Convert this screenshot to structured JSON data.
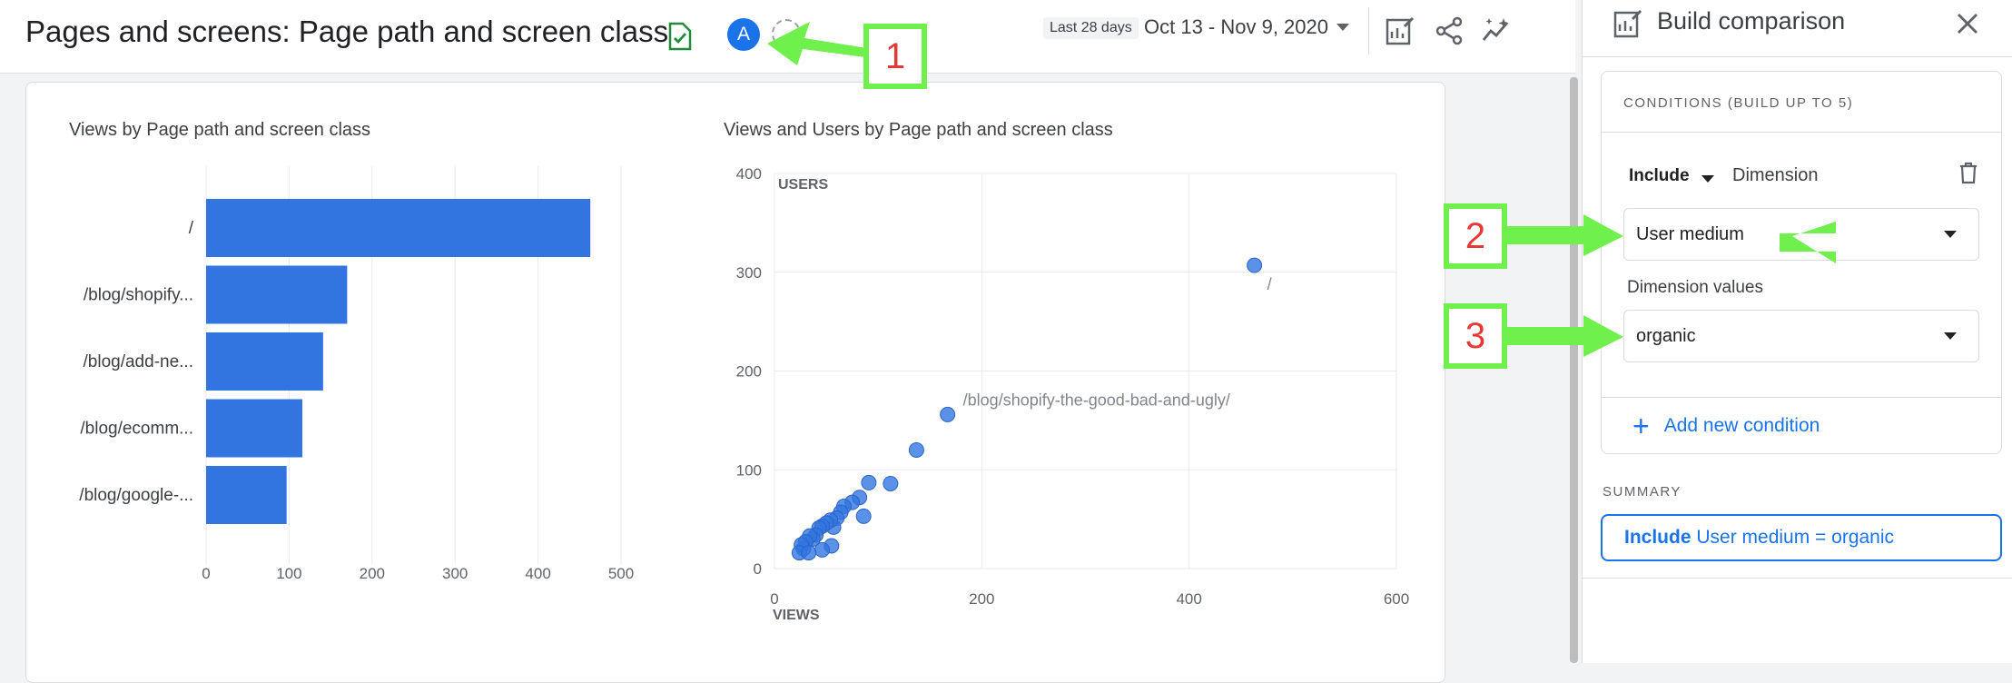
{
  "header": {
    "title": "Pages and screens: Page path and screen class",
    "segment_label": "A",
    "date_chip": "Last 28 days",
    "date_range": "Oct 13 - Nov 9, 2020"
  },
  "bar_chart": {
    "title": "Views by Page path and screen class"
  },
  "scatter_chart": {
    "title": "Views and Users by Page path and screen class"
  },
  "chart_data": [
    {
      "type": "bar",
      "orientation": "horizontal",
      "title": "Views by Page path and screen class",
      "categories": [
        "/",
        "/blog/shopify...",
        "/blog/add-ne...",
        "/blog/ecomm...",
        "/blog/google-..."
      ],
      "values": [
        463,
        170,
        141,
        116,
        97
      ],
      "xlim": [
        0,
        500
      ],
      "xticks": [
        0,
        100,
        200,
        300,
        400,
        500
      ],
      "grid": true,
      "color": "#3275e0"
    },
    {
      "type": "scatter",
      "title": "Views and Users by Page path and screen class",
      "xlabel": "VIEWS",
      "ylabel": "USERS",
      "xlim": [
        0,
        600
      ],
      "ylim": [
        0,
        400
      ],
      "xticks": [
        0,
        200,
        400,
        600
      ],
      "yticks": [
        0,
        100,
        200,
        300,
        400
      ],
      "grid": true,
      "color": "#3275e0",
      "points": [
        {
          "x": 463,
          "y": 307,
          "label": "/"
        },
        {
          "x": 167,
          "y": 156,
          "label": "/blog/shopify-the-good-bad-and-ugly/"
        },
        {
          "x": 137,
          "y": 120
        },
        {
          "x": 112,
          "y": 86
        },
        {
          "x": 91,
          "y": 87
        },
        {
          "x": 86,
          "y": 53
        },
        {
          "x": 82,
          "y": 72
        },
        {
          "x": 75,
          "y": 67
        },
        {
          "x": 67,
          "y": 63
        },
        {
          "x": 64,
          "y": 57
        },
        {
          "x": 60,
          "y": 51
        },
        {
          "x": 57,
          "y": 42
        },
        {
          "x": 54,
          "y": 49
        },
        {
          "x": 50,
          "y": 46
        },
        {
          "x": 46,
          "y": 43
        },
        {
          "x": 43,
          "y": 41
        },
        {
          "x": 55,
          "y": 23
        },
        {
          "x": 46,
          "y": 19
        },
        {
          "x": 40,
          "y": 34
        },
        {
          "x": 37,
          "y": 30
        },
        {
          "x": 34,
          "y": 33
        },
        {
          "x": 30,
          "y": 27
        },
        {
          "x": 28,
          "y": 20
        },
        {
          "x": 26,
          "y": 24
        },
        {
          "x": 24,
          "y": 16
        },
        {
          "x": 33,
          "y": 16
        }
      ]
    }
  ],
  "panel": {
    "title": "Build comparison",
    "conditions_heading": "CONDITIONS (BUILD UP TO 5)",
    "include_label": "Include",
    "dimension_label": "Dimension",
    "dimension_value": "User medium",
    "dimension_values_label": "Dimension values",
    "dimension_values_value": "organic",
    "add_condition_label": "Add new condition",
    "summary_heading": "SUMMARY",
    "summary_include": "Include",
    "summary_text": " User medium = organic"
  },
  "annotations": [
    "1",
    "2",
    "3"
  ],
  "colors": {
    "accent": "#1a73e8",
    "bar": "#3275e0",
    "annotation_border": "#6ff04d",
    "annotation_text": "#e53935"
  }
}
